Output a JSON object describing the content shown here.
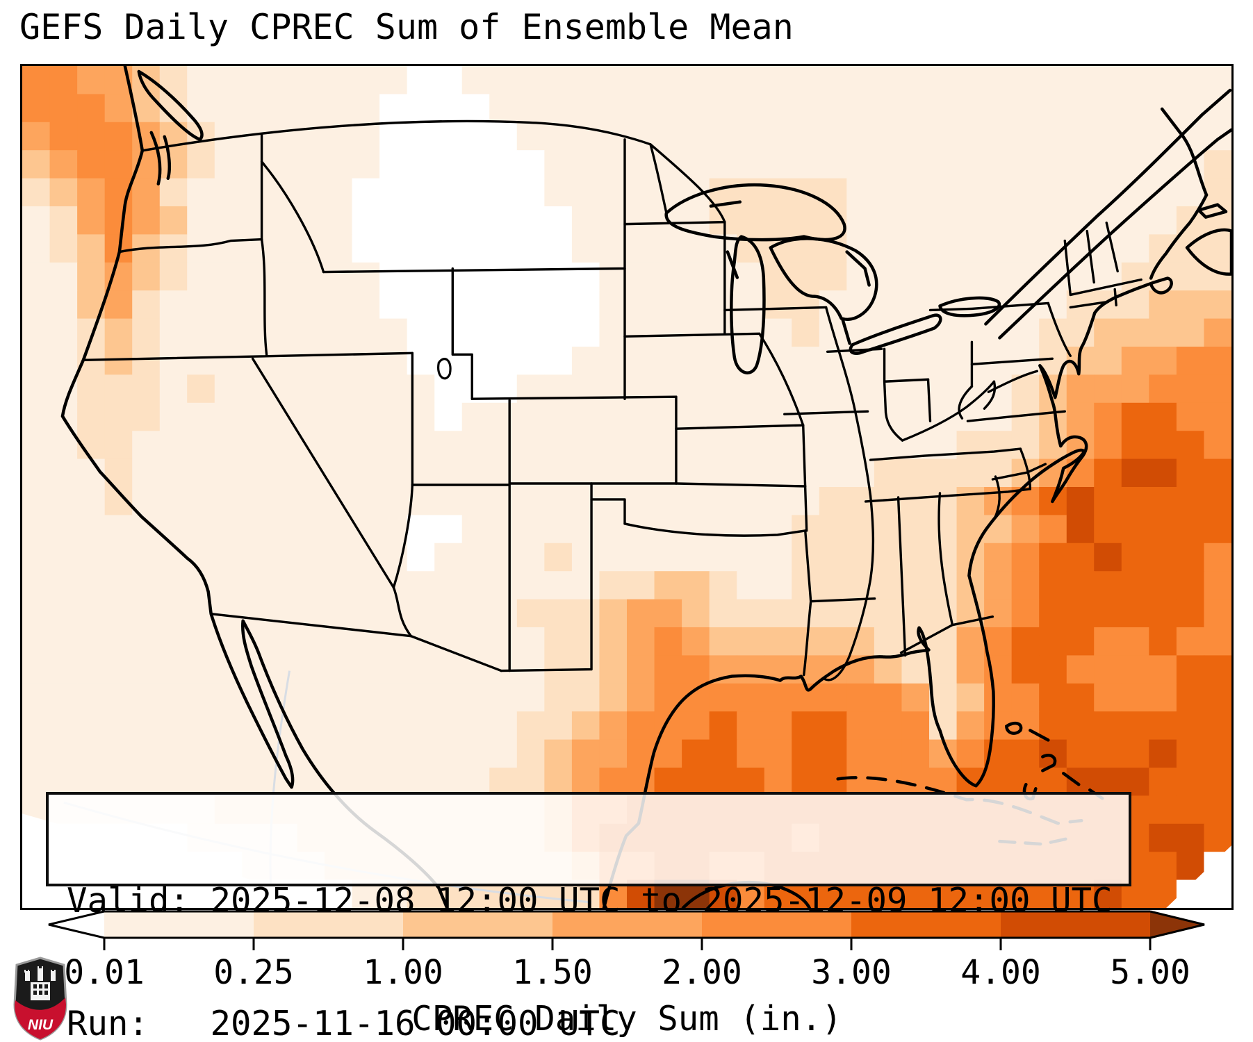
{
  "title": "GEFS Daily CPREC Sum of Ensemble Mean",
  "info_box": {
    "valid_line": "Valid: 2025-12-08 12:00 UTC to 2025-12-09 12:00 UTC",
    "run_line": "Run:   2025-11-16 00:00 UTC"
  },
  "colorbar": {
    "label": "CPREC Daily Sum (in.)",
    "tick_labels": [
      "0.01",
      "0.25",
      "1.00",
      "1.50",
      "2.00",
      "3.00",
      "4.00",
      "5.00"
    ],
    "tick_values": [
      0.01,
      0.25,
      1.0,
      1.5,
      2.0,
      3.0,
      4.0,
      5.0
    ],
    "segment_colors": [
      "#fdf0e2",
      "#fde1c3",
      "#fdc690",
      "#fda55d",
      "#fb8c3b",
      "#ec660e",
      "#d14c04"
    ],
    "under_color": "#ffffff",
    "over_color": "#8c3408",
    "units": "in."
  },
  "logo": {
    "text": "NIU",
    "shield_dark": "#1b1b1b",
    "shield_red": "#c8102e",
    "shield_trim": "#9a9a9a"
  },
  "map": {
    "description": "GEFS ensemble-mean daily precipitation sum over CONUS, Mexico, Gulf of Mexico and western Atlantic",
    "level_colors": {
      "0": "#ffffff",
      "1": "#fdf0e2",
      "2": "#fde1c3",
      "3": "#fdc690",
      "4": "#fda55d",
      "5": "#fb8c3b",
      "6": "#ec660e",
      "7": "#d14c04",
      "8": "#8c3408"
    },
    "level_bounds_in": [
      0.01,
      0.25,
      1.0,
      1.5,
      2.0,
      3.0,
      4.0,
      5.0
    ],
    "grid": {
      "cols": 44,
      "rows": 30,
      "codes": [
        "55443211111111001111111111111111111111111111",
        "55543211111110000111111111111111111111111111",
        "45554321111110000011111111111111111111111111",
        "34554321111110000001111111111111111111111112",
        "23454211111100000001111112222211111111111112",
        "12454311111100000000111112222211111111111122",
        "12353211111100000000111111222211111111111222",
        "11343211111110000000011111122211111111112222",
        "11342111111110000000011111122111111111222333",
        "11232111111111000000011111112111111112233334",
        "11232111111111000000111111111111111112334455",
        "11222121111111100011111111111111111123444555",
        "11222111111111101111111111111111111123456655",
        "11221111111111111111111111111111112223456665",
        "11121111111111111111111111111112222234567766",
        "11121111111111111111111111111222223456766 66",
        "11111111111111001111111111112222223345766666",
        "11111111111111011112111111112222223456676665",
        "11111111111111111111122332112222223456666665",
        "11111111111111111122234432222222223456666665",
        "11111111111111111112234543333332224566655655",
        "11111111111111111112234554444443224566555566",
        "11111111111111111112234555555555423556655566",
        "11111111111111111122345556556655524556666666",
        "11111111111111111123445566556655545667666766",
        "11111111111111111223455666656655556666777666",
        "11111112222222222223556666666666666666666666",
        "00000011112222222223566666665666666666666776",
        "00000000111222222222355665566666666666666670",
        "00000000000011222222257887566666666666676600"
      ]
    }
  }
}
